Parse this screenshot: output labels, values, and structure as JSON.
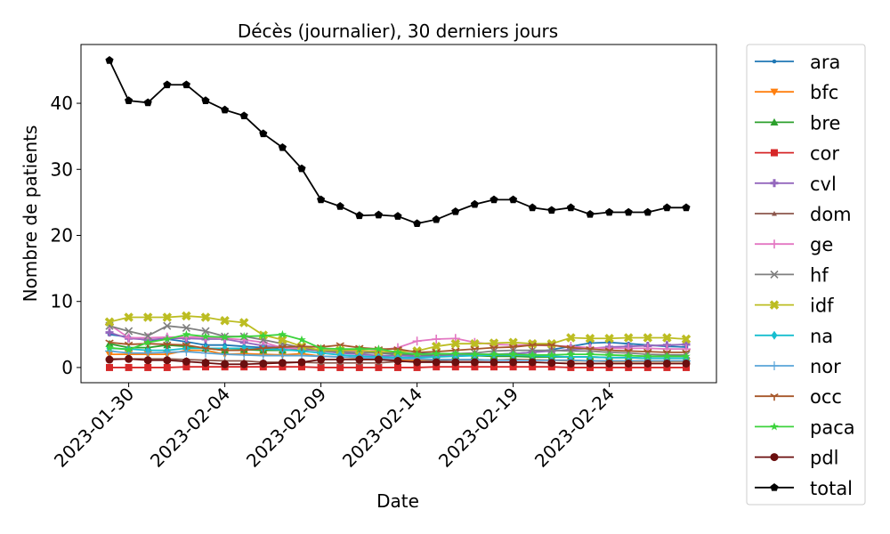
{
  "chart_data": {
    "type": "line",
    "title": "Décès (journalier), 30 derniers jours",
    "xlabel": "Date",
    "ylabel": "Nombre de patients",
    "x": [
      "2023-01-29",
      "2023-01-30",
      "2023-01-31",
      "2023-02-01",
      "2023-02-02",
      "2023-02-03",
      "2023-02-04",
      "2023-02-05",
      "2023-02-06",
      "2023-02-07",
      "2023-02-08",
      "2023-02-09",
      "2023-02-10",
      "2023-02-11",
      "2023-02-12",
      "2023-02-13",
      "2023-02-14",
      "2023-02-15",
      "2023-02-16",
      "2023-02-17",
      "2023-02-18",
      "2023-02-19",
      "2023-02-20",
      "2023-02-21",
      "2023-02-22",
      "2023-02-23",
      "2023-02-24",
      "2023-02-25",
      "2023-02-26",
      "2023-02-27",
      "2023-02-28"
    ],
    "xticks": [
      "2023-01-30",
      "2023-02-04",
      "2023-02-09",
      "2023-02-14",
      "2023-02-19",
      "2023-02-24"
    ],
    "yticks": [
      0,
      10,
      20,
      30,
      40
    ],
    "ylim": [
      -2.3,
      48.9
    ],
    "grid": false,
    "legend_position": "outside-right",
    "series": [
      {
        "name": "ara",
        "color": "#1f77b4",
        "marker": "point",
        "values": [
          5.0,
          4.6,
          4.1,
          4.3,
          3.9,
          3.4,
          3.4,
          3.2,
          3.0,
          2.9,
          2.9,
          2.6,
          2.4,
          2.3,
          2.2,
          2.2,
          2.1,
          2.1,
          2.0,
          2.0,
          2.0,
          2.1,
          2.3,
          2.7,
          3.2,
          3.7,
          3.8,
          3.6,
          3.4,
          3.2,
          3.1
        ]
      },
      {
        "name": "bfc",
        "color": "#ff7f0e",
        "marker": "triangle-down",
        "values": [
          2.0,
          2.0,
          2.0,
          2.0,
          2.6,
          2.6,
          2.0,
          2.1,
          2.0,
          1.9,
          2.1,
          1.7,
          1.6,
          1.4,
          1.3,
          1.2,
          1.1,
          1.2,
          1.2,
          1.2,
          1.1,
          1.2,
          1.2,
          1.1,
          1.0,
          1.0,
          0.9,
          0.9,
          0.9,
          0.9,
          0.9
        ]
      },
      {
        "name": "bre",
        "color": "#2ca02c",
        "marker": "triangle-up",
        "values": [
          3.6,
          3.0,
          3.0,
          3.4,
          3.2,
          2.9,
          2.6,
          2.7,
          2.6,
          2.6,
          2.7,
          2.6,
          2.5,
          2.3,
          2.2,
          2.0,
          1.8,
          1.8,
          1.8,
          1.8,
          1.7,
          1.7,
          1.6,
          1.6,
          1.6,
          1.6,
          1.5,
          1.5,
          1.4,
          1.4,
          1.4
        ]
      },
      {
        "name": "cor",
        "color": "#d62728",
        "marker": "square",
        "values": [
          0.0,
          0.0,
          0.0,
          0.0,
          0.1,
          0.1,
          0.1,
          0.1,
          0.1,
          0.1,
          0.1,
          0.0,
          0.0,
          0.0,
          0.0,
          0.0,
          0.0,
          0.1,
          0.1,
          0.1,
          0.1,
          0.1,
          0.1,
          0.1,
          0.0,
          0.0,
          0.0,
          0.0,
          0.0,
          0.0,
          0.0
        ]
      },
      {
        "name": "cvl",
        "color": "#9467bd",
        "marker": "plus-filled",
        "values": [
          5.3,
          4.4,
          4.2,
          4.4,
          4.4,
          4.3,
          4.3,
          3.8,
          3.3,
          3.0,
          2.8,
          2.5,
          2.2,
          2.0,
          1.8,
          1.8,
          1.7,
          1.7,
          1.8,
          1.9,
          2.0,
          2.1,
          2.3,
          2.5,
          2.7,
          2.9,
          3.1,
          3.2,
          3.3,
          3.4,
          3.5
        ]
      },
      {
        "name": "dom",
        "color": "#8c564b",
        "marker": "triangle-up-small",
        "values": [
          1.3,
          1.3,
          1.3,
          1.3,
          1.2,
          1.1,
          1.0,
          1.0,
          0.8,
          0.8,
          0.8,
          0.7,
          0.7,
          0.7,
          0.7,
          0.9,
          0.9,
          1.0,
          1.1,
          1.1,
          1.1,
          1.2,
          1.1,
          1.1,
          1.1,
          1.0,
          1.0,
          1.0,
          1.0,
          1.0,
          1.0
        ]
      },
      {
        "name": "ge",
        "color": "#e377c2",
        "marker": "plus",
        "values": [
          6.5,
          4.5,
          4.5,
          4.6,
          4.6,
          4.6,
          4.4,
          4.2,
          3.8,
          3.0,
          2.8,
          2.7,
          2.5,
          2.4,
          2.6,
          3.0,
          4.0,
          4.3,
          4.4,
          3.8,
          3.5,
          3.4,
          3.4,
          3.3,
          3.2,
          3.0,
          2.9,
          2.9,
          2.9,
          2.8,
          2.8
        ]
      },
      {
        "name": "hf",
        "color": "#7f7f7f",
        "marker": "x",
        "values": [
          6.3,
          5.5,
          4.8,
          6.3,
          6.0,
          5.5,
          4.7,
          4.7,
          4.2,
          3.6,
          3.0,
          2.5,
          2.4,
          2.2,
          2.2,
          2.1,
          2.0,
          2.0,
          2.1,
          2.2,
          2.5,
          2.6,
          2.6,
          2.6,
          2.5,
          2.5,
          2.3,
          2.2,
          2.0,
          1.9,
          1.9
        ]
      },
      {
        "name": "idf",
        "color": "#bcbd22",
        "marker": "x-filled",
        "values": [
          6.9,
          7.6,
          7.6,
          7.6,
          7.8,
          7.6,
          7.1,
          6.8,
          4.9,
          4.2,
          3.2,
          2.6,
          2.6,
          2.6,
          2.4,
          2.4,
          2.5,
          3.2,
          3.6,
          3.6,
          3.7,
          3.8,
          3.6,
          3.6,
          4.5,
          4.4,
          4.4,
          4.5,
          4.5,
          4.5,
          4.3
        ]
      },
      {
        "name": "na",
        "color": "#17becf",
        "marker": "diamond",
        "values": [
          2.9,
          2.8,
          2.6,
          2.6,
          2.9,
          2.9,
          2.9,
          2.9,
          2.8,
          2.7,
          2.5,
          2.2,
          1.9,
          1.7,
          1.6,
          1.5,
          1.5,
          1.6,
          1.7,
          1.8,
          1.9,
          1.9,
          1.8,
          1.7,
          1.6,
          1.6,
          1.5,
          1.5,
          1.4,
          1.4,
          1.4
        ]
      },
      {
        "name": "nor",
        "color": "#58a4d8",
        "marker": "plus-thin",
        "values": [
          2.5,
          2.2,
          2.2,
          2.3,
          2.4,
          2.2,
          2.0,
          1.9,
          1.8,
          1.8,
          1.8,
          1.7,
          1.6,
          1.5,
          1.4,
          1.3,
          1.3,
          1.2,
          1.2,
          1.2,
          1.1,
          1.1,
          1.1,
          1.1,
          1.1,
          1.0,
          1.0,
          1.0,
          1.0,
          1.0,
          1.0
        ]
      },
      {
        "name": "occ",
        "color": "#a65628",
        "marker": "tri",
        "values": [
          3.8,
          3.5,
          3.6,
          3.5,
          3.4,
          2.9,
          2.6,
          2.6,
          2.9,
          3.1,
          3.2,
          3.1,
          3.4,
          3.0,
          2.8,
          2.8,
          2.3,
          2.4,
          2.6,
          2.8,
          3.0,
          3.1,
          3.4,
          3.4,
          3.0,
          2.8,
          2.6,
          2.5,
          2.4,
          2.3,
          2.3
        ]
      },
      {
        "name": "paca",
        "color": "#3cd33c",
        "marker": "star",
        "values": [
          3.0,
          2.7,
          3.8,
          4.3,
          5.0,
          4.7,
          4.6,
          4.7,
          4.8,
          5.0,
          4.2,
          2.9,
          2.8,
          2.8,
          2.8,
          2.3,
          2.0,
          2.1,
          2.1,
          2.0,
          2.0,
          2.0,
          1.9,
          1.9,
          2.0,
          2.0,
          1.9,
          1.8,
          1.7,
          1.7,
          1.7
        ]
      },
      {
        "name": "pdl",
        "color": "#6b0f0f",
        "marker": "circle",
        "values": [
          1.2,
          1.3,
          1.1,
          1.1,
          0.9,
          0.7,
          0.5,
          0.5,
          0.6,
          0.7,
          0.8,
          1.2,
          1.2,
          1.2,
          1.2,
          1.0,
          0.8,
          0.8,
          0.8,
          0.8,
          0.8,
          0.8,
          0.8,
          0.7,
          0.6,
          0.6,
          0.6,
          0.6,
          0.6,
          0.6,
          0.6
        ]
      },
      {
        "name": "total",
        "color": "#000000",
        "marker": "pentagon",
        "values": [
          46.5,
          40.4,
          40.1,
          42.8,
          42.8,
          40.4,
          39.0,
          38.1,
          35.4,
          33.3,
          30.1,
          25.4,
          24.4,
          23.0,
          23.1,
          22.9,
          21.8,
          22.4,
          23.6,
          24.7,
          25.4,
          25.4,
          24.2,
          23.8,
          24.2,
          23.2,
          23.5,
          23.5,
          23.5,
          24.2,
          24.2
        ]
      }
    ]
  }
}
